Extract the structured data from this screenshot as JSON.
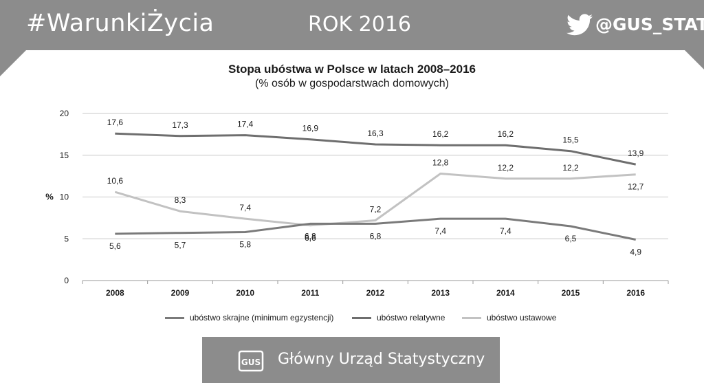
{
  "header": {
    "hashtag": "#WarunkiŻycia",
    "year_label": "ROK 2016",
    "handle": "@GUS_STAT",
    "twitter_icon": "twitter-bird-icon"
  },
  "footer": {
    "org_name": "Główny Urząd Statystyczny",
    "logo_text": "GUS",
    "logo_icon": "gus-logo-icon"
  },
  "colors": {
    "banner": "#8c8c8c",
    "series_extreme": "#7a7a7a",
    "series_relative": "#6e6e6e",
    "series_statutory": "#c2c2c2",
    "grid": "#c8c8c8"
  },
  "chart_data": {
    "type": "line",
    "title": "Stopa ubóstwa w Polsce w latach 2008–2016",
    "subtitle": "(% osób w gospodarstwach domowych)",
    "ylabel": "%",
    "xlabel": "",
    "ylim": [
      0,
      20
    ],
    "yticks": [
      "0",
      "5",
      "10",
      "15",
      "20"
    ],
    "categories": [
      "2008",
      "2009",
      "2010",
      "2011",
      "2012",
      "2013",
      "2014",
      "2015",
      "2016"
    ],
    "grid": true,
    "legend_position": "bottom",
    "series": [
      {
        "name": "ubóstwo skrajne (minimum egzystencji)",
        "values": [
          5.6,
          5.7,
          5.8,
          6.8,
          6.8,
          7.4,
          7.4,
          6.5,
          4.9
        ],
        "labels": [
          "5,6",
          "5,7",
          "5,8",
          "6,8",
          "6,8",
          "7,4",
          "7,4",
          "6,5",
          "4,9"
        ],
        "color": "#7a7a7a"
      },
      {
        "name": "ubóstwo relatywne",
        "values": [
          17.6,
          17.3,
          17.4,
          16.9,
          16.3,
          16.2,
          16.2,
          15.5,
          13.9
        ],
        "labels": [
          "17,6",
          "17,3",
          "17,4",
          "16,9",
          "16,3",
          "16,2",
          "16,2",
          "15,5",
          "13,9"
        ],
        "color": "#6e6e6e"
      },
      {
        "name": "ubóstwo ustawowe",
        "values": [
          10.6,
          8.3,
          7.4,
          6.6,
          7.2,
          12.8,
          12.2,
          12.2,
          12.7
        ],
        "labels": [
          "10,6",
          "8,3",
          "7,4",
          "6,6",
          "7,2",
          "12,8",
          "12,2",
          "12,2",
          "12,7"
        ],
        "color": "#c2c2c2"
      }
    ]
  }
}
